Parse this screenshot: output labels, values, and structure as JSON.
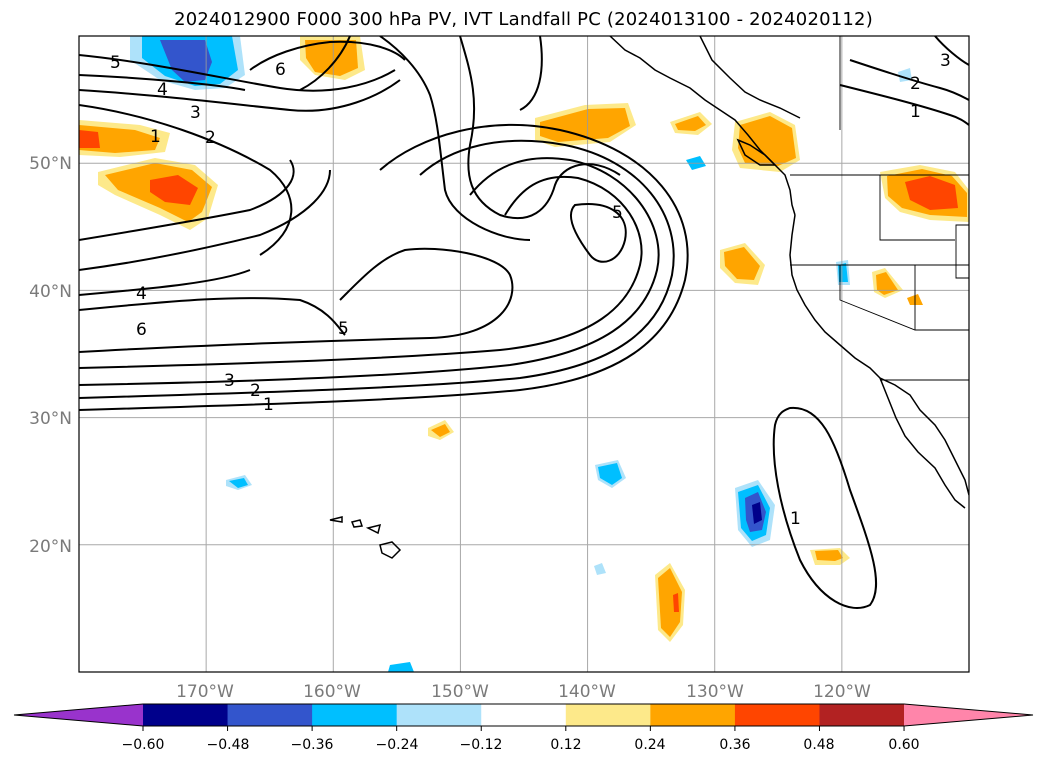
{
  "title": "2024012900 F000 300 hPa PV, IVT Landfall PC (2024013100 - 2024020112)",
  "map": {
    "projection": "lat-lon",
    "lon_range": [
      -180,
      -110
    ],
    "lat_range": [
      10,
      60
    ],
    "grid": true,
    "lon_ticks": [
      "170°W",
      "160°W",
      "150°W",
      "140°W",
      "130°W",
      "120°W"
    ],
    "lat_ticks": [
      "50°N",
      "40°N",
      "30°N",
      "20°N"
    ]
  },
  "contour_labels": [
    "5",
    "6",
    "4",
    "3",
    "2",
    "1",
    "4",
    "6",
    "5",
    "3",
    "2",
    "1",
    "5",
    "1",
    "2",
    "1",
    "3"
  ],
  "colorbar": {
    "ticks": [
      "−0.60",
      "−0.48",
      "−0.36",
      "−0.24",
      "−0.12",
      "0.12",
      "0.24",
      "0.36",
      "0.48",
      "0.60"
    ],
    "colors": [
      "#9933cc",
      "#00008b",
      "#3355cc",
      "#00bfff",
      "#aee2fa",
      "#ffffff",
      "#fde98a",
      "#ffa500",
      "#ff4500",
      "#b22222",
      "#ff85aa"
    ]
  }
}
